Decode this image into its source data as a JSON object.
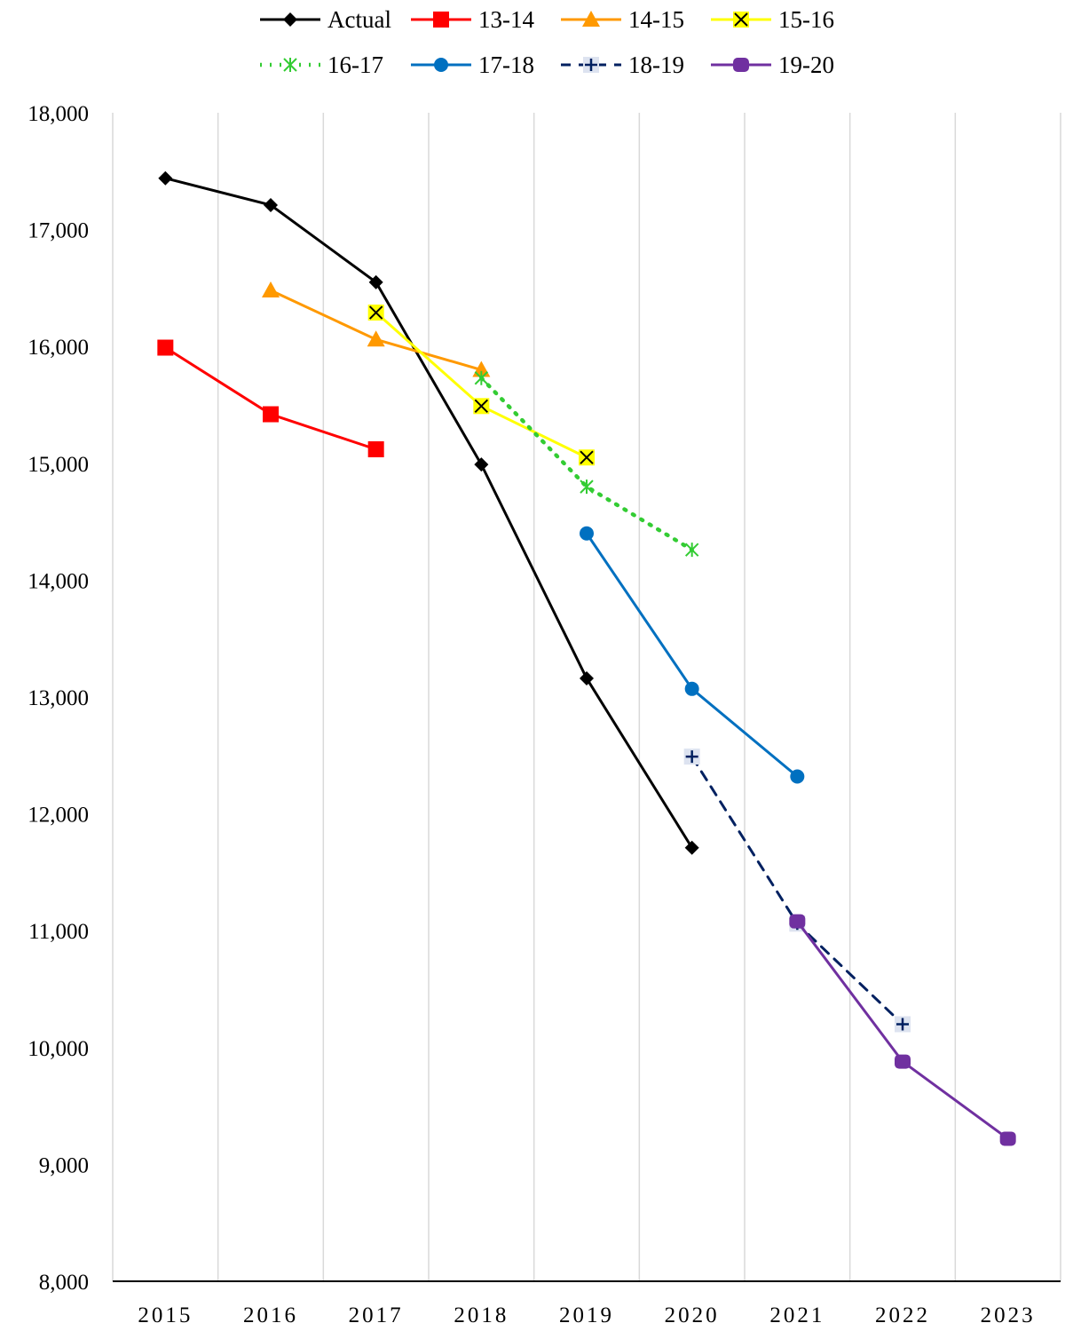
{
  "chart_data": {
    "type": "line",
    "title": "",
    "xlabel": "",
    "ylabel": "",
    "x": [
      "2015",
      "2016",
      "2017",
      "2018",
      "2019",
      "2020",
      "2021",
      "2022",
      "2023"
    ],
    "y_ticks": [
      "8,000",
      "9,000",
      "10,000",
      "11,000",
      "12,000",
      "13,000",
      "14,000",
      "15,000",
      "16,000",
      "17,000",
      "18,000"
    ],
    "ylim": [
      8000,
      18000
    ],
    "grid": "vertical",
    "legend_position": "top",
    "series": [
      {
        "name": "Actual",
        "color": "#000000",
        "marker": "diamond",
        "dash": "solid",
        "values": [
          17440,
          17210,
          16550,
          14990,
          13160,
          11710,
          null,
          null,
          null
        ]
      },
      {
        "name": "13-14",
        "color": "#ff0000",
        "marker": "square",
        "dash": "solid",
        "values": [
          15990,
          15420,
          15120,
          null,
          null,
          null,
          null,
          null,
          null
        ]
      },
      {
        "name": "14-15",
        "color": "#ff9900",
        "marker": "triangle",
        "dash": "solid",
        "values": [
          null,
          16480,
          16060,
          15800,
          null,
          null,
          null,
          null,
          null
        ]
      },
      {
        "name": "15-16",
        "color": "#ffff00",
        "marker": "x",
        "dash": "solid",
        "values": [
          null,
          null,
          16290,
          15490,
          15050,
          null,
          null,
          null,
          null
        ]
      },
      {
        "name": "16-17",
        "color": "#33cc33",
        "marker": "asterisk",
        "dash": "dotted",
        "values": [
          null,
          null,
          null,
          15730,
          14800,
          14260,
          null,
          null,
          null
        ]
      },
      {
        "name": "17-18",
        "color": "#0070c0",
        "marker": "circle",
        "dash": "solid",
        "values": [
          null,
          null,
          null,
          null,
          14400,
          13070,
          12320,
          null,
          null
        ]
      },
      {
        "name": "18-19",
        "color": "#002060",
        "marker": "plus",
        "dash": "dashed",
        "values": [
          null,
          null,
          null,
          null,
          null,
          12490,
          11060,
          10200,
          null
        ]
      },
      {
        "name": "19-20",
        "color": "#7030a0",
        "marker": "roundsquare",
        "dash": "solid",
        "values": [
          null,
          null,
          null,
          null,
          null,
          null,
          11080,
          9880,
          9220
        ]
      }
    ]
  }
}
